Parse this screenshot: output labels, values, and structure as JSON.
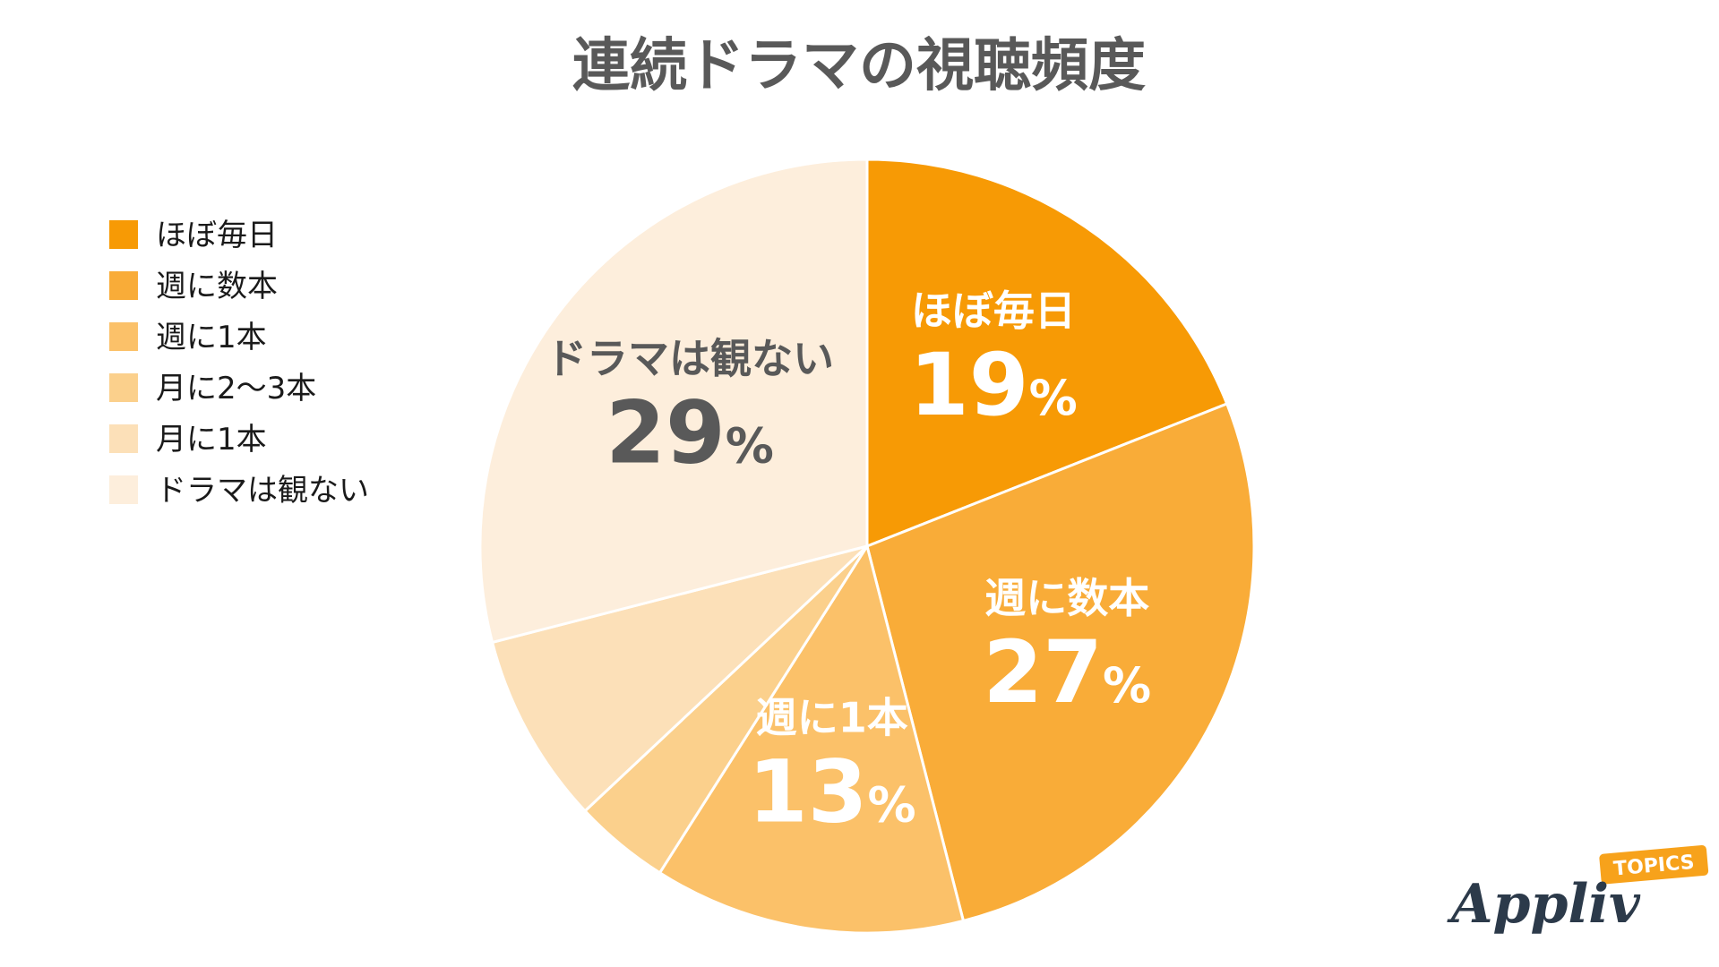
{
  "chart_data": {
    "type": "pie",
    "title": "連続ドラマの視聴頻度",
    "legend_position": "left",
    "slices": [
      {
        "name": "ほぼ毎日",
        "value": 19,
        "label_text": "ほぼ毎日",
        "pct_text": "19",
        "color": "#F79A05",
        "label_color": "#FFFFFF"
      },
      {
        "name": "週に数本",
        "value": 27,
        "label_text": "週に数本",
        "pct_text": "27",
        "color": "#F9AC38",
        "label_color": "#FFFFFF"
      },
      {
        "name": "週に1本",
        "value": 13,
        "label_text": "週に1本",
        "pct_text": "13",
        "color": "#FBC169",
        "label_color": "#FFFFFF"
      },
      {
        "name": "月に2〜3本",
        "value": 4,
        "label_text": "",
        "pct_text": "",
        "color": "#FBD08C",
        "label_color": "#FFFFFF"
      },
      {
        "name": "月に1本",
        "value": 8,
        "label_text": "",
        "pct_text": "",
        "color": "#FCE0B8",
        "label_color": "#FFFFFF"
      },
      {
        "name": "ドラマは観ない",
        "value": 29,
        "label_text": "ドラマは観ない",
        "pct_text": "29",
        "color": "#FDEEDC",
        "label_color": "#595959"
      }
    ],
    "percent_sign": "%"
  },
  "logo": {
    "text": "Appliv",
    "badge": "TOPICS",
    "badge_color": "#F7A21B",
    "text_color": "#2C3A4A"
  }
}
